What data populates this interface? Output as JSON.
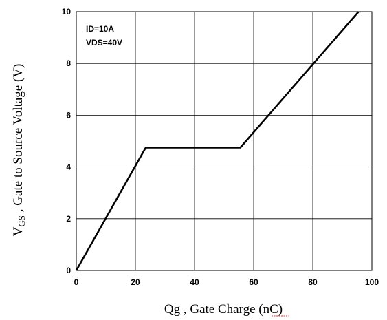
{
  "chart_data": {
    "type": "line",
    "xlabel": "Qg , Gate Charge (nC)",
    "ylabel_main": "V",
    "ylabel_sub": "GS",
    "ylabel_rest": " , Gate to Source Voltage (V)",
    "xlim": [
      0,
      100
    ],
    "ylim": [
      0,
      10
    ],
    "xticks": [
      0,
      20,
      40,
      60,
      80,
      100
    ],
    "yticks": [
      0,
      2,
      4,
      6,
      8,
      10
    ],
    "grid": true,
    "annotations": [
      "ID=10A",
      "VDS=40V"
    ],
    "series": [
      {
        "x": [
          0,
          23.5,
          55.5,
          95.5
        ],
        "y": [
          0,
          4.75,
          4.75,
          10
        ]
      }
    ]
  }
}
